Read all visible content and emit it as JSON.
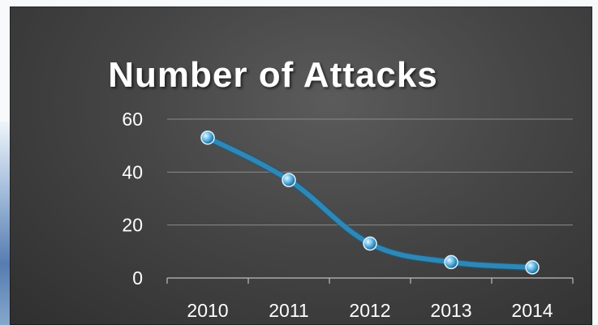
{
  "chart_data": {
    "type": "line",
    "title": "Number of Attacks",
    "categories": [
      "2010",
      "2011",
      "2012",
      "2013",
      "2014"
    ],
    "series": [
      {
        "values": [
          53,
          37,
          13,
          6,
          4
        ]
      }
    ],
    "ylim": [
      0,
      60
    ],
    "yticks": [
      0,
      20,
      40,
      60
    ],
    "grid": true,
    "legend": "none",
    "colors": {
      "line": "#2e88b6",
      "marker": "#6fc2ec",
      "grid": "#8a8a8a"
    }
  }
}
